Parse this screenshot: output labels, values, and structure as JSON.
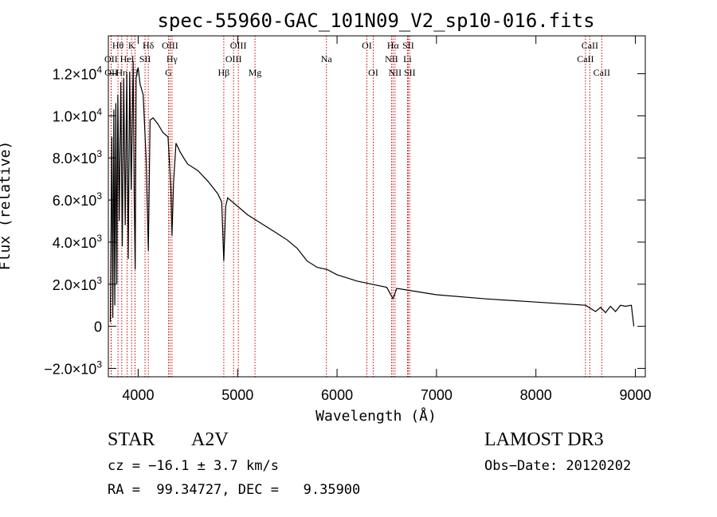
{
  "chart_data": {
    "type": "line",
    "title": "spec-55960-GAC_101N09_V2_sp10-016.fits",
    "xlabel": "Wavelength (Å)",
    "ylabel": "Flux (relative)",
    "xlim": [
      3700,
      9100
    ],
    "ylim": [
      -2400,
      13800
    ],
    "x_ticks": [
      4000,
      5000,
      6000,
      7000,
      8000,
      9000
    ],
    "x_tick_labels": [
      "4000",
      "5000",
      "6000",
      "7000",
      "8000",
      "9000"
    ],
    "y_ticks": [
      {
        "value": -2000,
        "mantissa": "−2.0×10",
        "exp": "3"
      },
      {
        "value": 0,
        "mantissa": "0",
        "exp": ""
      },
      {
        "value": 2000,
        "mantissa": "2.0×10",
        "exp": "3"
      },
      {
        "value": 4000,
        "mantissa": "4.0×10",
        "exp": "3"
      },
      {
        "value": 6000,
        "mantissa": "6.0×10",
        "exp": "3"
      },
      {
        "value": 8000,
        "mantissa": "8.0×10",
        "exp": "3"
      },
      {
        "value": 10000,
        "mantissa": "1.0×10",
        "exp": "4"
      },
      {
        "value": 12000,
        "mantissa": "1.2×10",
        "exp": "4"
      }
    ],
    "series": [
      {
        "name": "spectrum",
        "points": [
          [
            3720,
            200
          ],
          [
            3735,
            9000
          ],
          [
            3745,
            400
          ],
          [
            3755,
            10300
          ],
          [
            3765,
            1000
          ],
          [
            3775,
            10600
          ],
          [
            3785,
            2000
          ],
          [
            3795,
            11000
          ],
          [
            3810,
            5000
          ],
          [
            3825,
            11600
          ],
          [
            3840,
            3800
          ],
          [
            3855,
            11800
          ],
          [
            3870,
            4800
          ],
          [
            3885,
            12000
          ],
          [
            3900,
            3200
          ],
          [
            3915,
            12100
          ],
          [
            3930,
            6500
          ],
          [
            3950,
            12600
          ],
          [
            3960,
            6000
          ],
          [
            3970,
            2700
          ],
          [
            3980,
            11800
          ],
          [
            4000,
            12300
          ],
          [
            4020,
            11500
          ],
          [
            4050,
            11000
          ],
          [
            4080,
            8000
          ],
          [
            4102,
            3600
          ],
          [
            4120,
            9800
          ],
          [
            4150,
            9900
          ],
          [
            4200,
            9600
          ],
          [
            4250,
            9200
          ],
          [
            4300,
            9000
          ],
          [
            4330,
            6500
          ],
          [
            4340,
            4300
          ],
          [
            4355,
            6800
          ],
          [
            4380,
            8700
          ],
          [
            4420,
            8300
          ],
          [
            4471,
            7900
          ],
          [
            4500,
            7700
          ],
          [
            4600,
            7400
          ],
          [
            4700,
            6900
          ],
          [
            4800,
            6300
          ],
          [
            4840,
            5900
          ],
          [
            4861,
            3100
          ],
          [
            4880,
            5700
          ],
          [
            4900,
            6100
          ],
          [
            4950,
            5900
          ],
          [
            5000,
            5700
          ],
          [
            5100,
            5300
          ],
          [
            5200,
            5000
          ],
          [
            5300,
            4700
          ],
          [
            5400,
            4400
          ],
          [
            5500,
            4100
          ],
          [
            5600,
            3700
          ],
          [
            5700,
            3100
          ],
          [
            5800,
            2800
          ],
          [
            5900,
            2700
          ],
          [
            6000,
            2450
          ],
          [
            6100,
            2300
          ],
          [
            6200,
            2150
          ],
          [
            6300,
            2050
          ],
          [
            6400,
            1950
          ],
          [
            6500,
            1850
          ],
          [
            6563,
            1300
          ],
          [
            6600,
            1800
          ],
          [
            6800,
            1650
          ],
          [
            7000,
            1500
          ],
          [
            7500,
            1300
          ],
          [
            8000,
            1150
          ],
          [
            8500,
            1000
          ],
          [
            8600,
            700
          ],
          [
            8650,
            900
          ],
          [
            8700,
            650
          ],
          [
            8750,
            950
          ],
          [
            8800,
            700
          ],
          [
            8850,
            1000
          ],
          [
            8900,
            950
          ],
          [
            8960,
            1000
          ],
          [
            8985,
            0
          ]
        ]
      }
    ],
    "lines": [
      {
        "name": "Hθ",
        "wavelength": 3797,
        "row": 1
      },
      {
        "name": "OII",
        "wavelength": 3727,
        "row": 2
      },
      {
        "name": "OII",
        "wavelength": 3729,
        "row": 3
      },
      {
        "name": "Hη",
        "wavelength": 3835,
        "row": 3
      },
      {
        "name": "HeI",
        "wavelength": 3889,
        "row": 2
      },
      {
        "name": "K",
        "wavelength": 3934,
        "row": 1
      },
      {
        "name": "H",
        "wavelength": 3968,
        "row": 3
      },
      {
        "name": "SII",
        "wavelength": 4069,
        "row": 2
      },
      {
        "name": "Hδ",
        "wavelength": 4102,
        "row": 1
      },
      {
        "name": "OIII",
        "wavelength": 4320,
        "row": 1
      },
      {
        "name": "Hγ",
        "wavelength": 4340,
        "row": 2
      },
      {
        "name": "G",
        "wavelength": 4305,
        "row": 3
      },
      {
        "name": "Hβ",
        "wavelength": 4861,
        "row": 3
      },
      {
        "name": "OIII",
        "wavelength": 4959,
        "row": 2
      },
      {
        "name": "OIII",
        "wavelength": 5007,
        "row": 1
      },
      {
        "name": "Mg",
        "wavelength": 5175,
        "row": 3
      },
      {
        "name": "Na",
        "wavelength": 5893,
        "row": 2
      },
      {
        "name": "OI",
        "wavelength": 6300,
        "row": 1
      },
      {
        "name": "OI",
        "wavelength": 6364,
        "row": 3
      },
      {
        "name": "Hα",
        "wavelength": 6563,
        "row": 1
      },
      {
        "name": "NII",
        "wavelength": 6548,
        "row": 2
      },
      {
        "name": "NII",
        "wavelength": 6583,
        "row": 3
      },
      {
        "name": "SII",
        "wavelength": 6716,
        "row": 1
      },
      {
        "name": "Li",
        "wavelength": 6708,
        "row": 2
      },
      {
        "name": "SII",
        "wavelength": 6731,
        "row": 3
      },
      {
        "name": "CaII",
        "wavelength": 8542,
        "row": 1
      },
      {
        "name": "CaII",
        "wavelength": 8498,
        "row": 2
      },
      {
        "name": "CaII",
        "wavelength": 8662,
        "row": 3
      }
    ],
    "line_color": "#cc0000"
  },
  "info": {
    "class_label": "STAR",
    "subclass": "A2V",
    "survey": "LAMOST DR3",
    "cz": "cz = −16.1 ± 3.7 km/s",
    "obs_date": "Obs−Date: 20120202",
    "radec": "RA =  99.34727, DEC =   9.35900"
  }
}
